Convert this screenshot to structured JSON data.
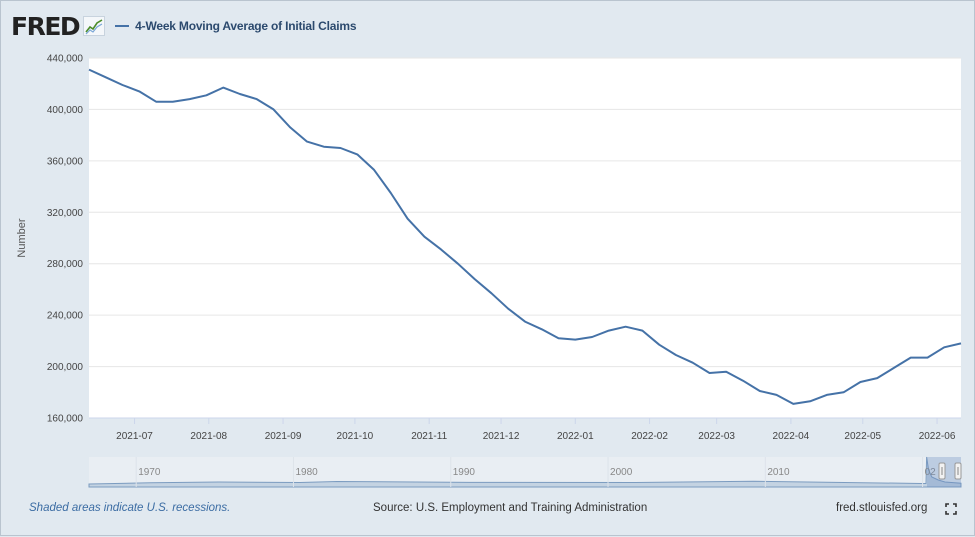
{
  "header": {
    "logo_text": "FRED",
    "series_label": "4-Week Moving Average of Initial Claims"
  },
  "footer": {
    "recession_note": "Shaded areas indicate U.S. recessions.",
    "source": "Source: U.S. Employment and Training Administration",
    "site": "fred.stlouisfed.org"
  },
  "colors": {
    "line": "#4572a7",
    "plot_background": "#ffffff",
    "page_background": "#e1e9f0",
    "grid": "#e6e6e6"
  },
  "chart_data": {
    "type": "line",
    "title": "",
    "xlabel": "",
    "ylabel": "Number",
    "ylim": [
      160000,
      440000
    ],
    "yticks": [
      "160,000",
      "200,000",
      "240,000",
      "280,000",
      "320,000",
      "360,000",
      "400,000",
      "440,000"
    ],
    "xticks": [
      "2021-07",
      "2021-08",
      "2021-09",
      "2021-10",
      "2021-11",
      "2021-12",
      "2022-01",
      "2022-02",
      "2022-03",
      "2022-04",
      "2022-05",
      "2022-06"
    ],
    "grid": true,
    "legend": "top-left",
    "series": [
      {
        "name": "4-Week Moving Average of Initial Claims",
        "x": [
          "2021-06-12",
          "2021-06-19",
          "2021-06-26",
          "2021-07-03",
          "2021-07-10",
          "2021-07-17",
          "2021-07-24",
          "2021-07-31",
          "2021-08-07",
          "2021-08-14",
          "2021-08-21",
          "2021-08-28",
          "2021-09-04",
          "2021-09-11",
          "2021-09-18",
          "2021-09-25",
          "2021-10-02",
          "2021-10-09",
          "2021-10-16",
          "2021-10-23",
          "2021-10-30",
          "2021-11-06",
          "2021-11-13",
          "2021-11-20",
          "2021-11-27",
          "2021-12-04",
          "2021-12-11",
          "2021-12-18",
          "2021-12-25",
          "2022-01-01",
          "2022-01-08",
          "2022-01-15",
          "2022-01-22",
          "2022-01-29",
          "2022-02-05",
          "2022-02-12",
          "2022-02-19",
          "2022-02-26",
          "2022-03-05",
          "2022-03-12",
          "2022-03-19",
          "2022-03-26",
          "2022-04-02",
          "2022-04-09",
          "2022-04-16",
          "2022-04-23",
          "2022-04-30",
          "2022-05-07",
          "2022-05-14",
          "2022-05-21",
          "2022-05-28",
          "2022-06-04",
          "2022-06-11"
        ],
        "values": [
          431000,
          425000,
          419000,
          414000,
          406000,
          406000,
          408000,
          411000,
          417000,
          412000,
          408000,
          400000,
          386000,
          375000,
          371000,
          370000,
          365000,
          353000,
          335000,
          315000,
          301000,
          291000,
          280000,
          268000,
          257000,
          245000,
          235000,
          229000,
          222000,
          221000,
          223000,
          228000,
          231000,
          228000,
          217000,
          209000,
          203000,
          195000,
          196000,
          189000,
          181000,
          178000,
          171000,
          173000,
          178000,
          180000,
          188000,
          191000,
          199000,
          207000,
          207000,
          215000,
          218000
        ]
      }
    ],
    "navigator": {
      "xticks": [
        "1970",
        "1980",
        "1990",
        "2000",
        "2010",
        "02"
      ]
    }
  }
}
